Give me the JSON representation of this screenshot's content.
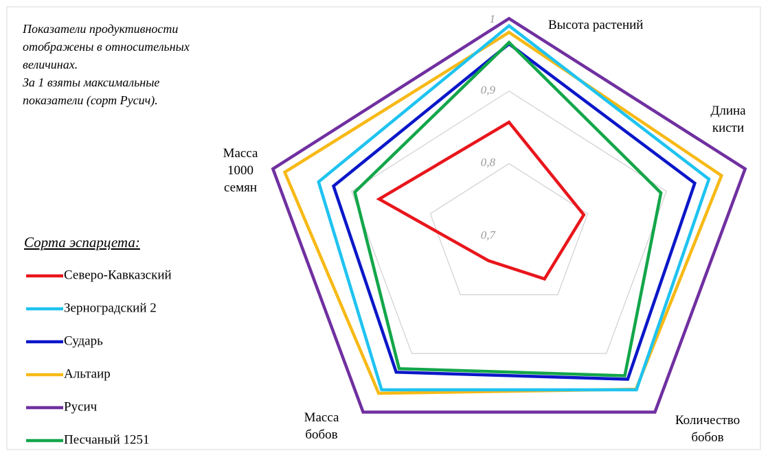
{
  "chart_data": {
    "type": "radar",
    "annotation": [
      "Показатели продуктивности",
      "отображены в относительных",
      "величинах.",
      "За 1 взяты максимальные",
      "показатели (сорт Русич)."
    ],
    "legend_title": "Сорта эспарцета:",
    "categories": [
      "Высота растений",
      "Длина\nкисти",
      "Количество\nбобов",
      "Масса\nбобов",
      "Масса\n1000\nсемян"
    ],
    "rlim": [
      0.7,
      1
    ],
    "rticks": [
      {
        "value": 0.7,
        "label": "0,7"
      },
      {
        "value": 0.8,
        "label": "0,8"
      },
      {
        "value": 0.9,
        "label": "0,9"
      },
      1
    ],
    "grid": true,
    "legend": "left",
    "series": [
      {
        "name": "Северо-Кавказский",
        "color": "#e8161c",
        "values": [
          0.857,
          0.795,
          0.773,
          0.742,
          0.865
        ]
      },
      {
        "name": "Зерноградский 2",
        "color": "#1fc3f0",
        "values": [
          0.99,
          0.954,
          0.962,
          0.962,
          0.942
        ]
      },
      {
        "name": "Сударь",
        "color": "#0b17c8",
        "values": [
          0.965,
          0.936,
          0.944,
          0.932,
          0.923
        ]
      },
      {
        "name": "Альтаир",
        "color": "#f7b916",
        "values": [
          0.981,
          0.97,
          0.961,
          0.968,
          0.985
        ]
      },
      {
        "name": "Русич",
        "color": "#7030a0",
        "values": [
          1,
          1,
          1,
          1,
          1
        ]
      },
      {
        "name": "Песчаный 1251",
        "color": "#13a64a",
        "values": [
          0.967,
          0.893,
          0.938,
          0.926,
          0.896
        ]
      }
    ]
  }
}
